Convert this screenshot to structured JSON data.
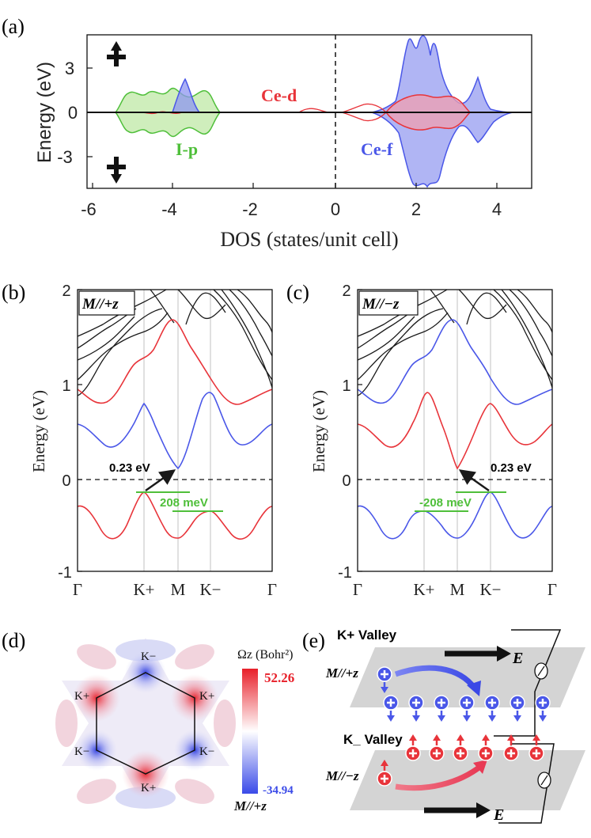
{
  "panel_labels": [
    "(a)",
    "(b)",
    "(c)",
    "(d)",
    "(e)"
  ],
  "colors": {
    "red": "#e8343a",
    "blue": "#4a57e8",
    "green": "#4fbf3a",
    "black": "#1a1a1a",
    "gray": "#cccccc",
    "plane": "#d4d4d4",
    "blue_fill": "#8e95f0",
    "red_fill": "#f09fb0",
    "green_fill": "#bfe8a6"
  },
  "panel_a": {
    "ylabel": "Energy (eV)",
    "xlabel": "DOS (states/unit cell)",
    "yticks": [
      "3",
      "0",
      "-3"
    ],
    "xticks": [
      "-6",
      "-4",
      "-2",
      "0",
      "2",
      "4"
    ],
    "labels": {
      "ce_d": "Ce-d",
      "i_p": "I-p",
      "ce_f": "Ce-f"
    }
  },
  "panel_b": {
    "tag": "M//+z",
    "ylabel": "Energy (eV)",
    "yticks": [
      "2",
      "1",
      "0",
      "-1"
    ],
    "kpoints": [
      "Γ",
      "K+",
      "M",
      "K−",
      "Γ"
    ],
    "gap_label": "0.23 eV",
    "split_label": "208 meV"
  },
  "panel_c": {
    "tag": "M//−z",
    "ylabel": "Energy (eV)",
    "yticks": [
      "2",
      "1",
      "0",
      "-1"
    ],
    "kpoints": [
      "Γ",
      "K+",
      "M",
      "K−",
      "Γ"
    ],
    "gap_label": "0.23 eV",
    "split_label": "-208 meV"
  },
  "panel_d": {
    "colorbar_title": "Ωz (Bohr²)",
    "max_label": "52.26",
    "min_label": "-34.94",
    "bottom_label": "M//+z",
    "vertex_labels": [
      "K−",
      "K+",
      "K+",
      "K−",
      "K−",
      "K+"
    ]
  },
  "panel_e": {
    "top_valley": "K+ Valley",
    "bottom_valley": "K_ Valley",
    "top_field": "M//+z",
    "bottom_field": "M//−z",
    "e_label": "E"
  }
}
